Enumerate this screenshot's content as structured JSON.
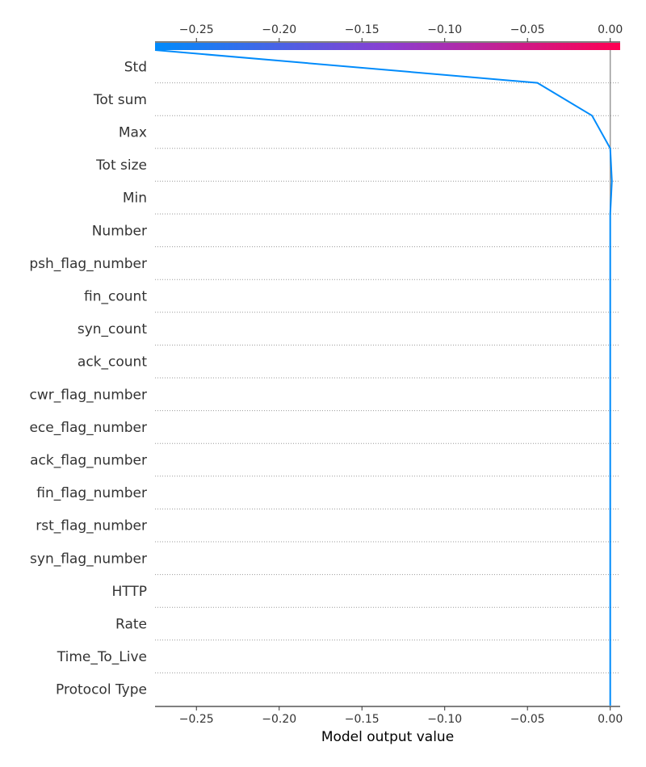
{
  "chart_data": {
    "type": "line",
    "xlabel": "Model output value",
    "xlim": [
      -0.275,
      0.006
    ],
    "x_ticks": [
      "−0.25",
      "−0.20",
      "−0.15",
      "−0.10",
      "−0.05",
      "0.00"
    ],
    "x_tick_values": [
      -0.25,
      -0.2,
      -0.15,
      -0.1,
      -0.05,
      0.0
    ],
    "reference_line_x": 0.0,
    "colorbar": {
      "from": "#008bfb",
      "to": "#ff0052"
    },
    "features": [
      "Std",
      "Tot sum",
      "Max",
      "Tot size",
      "Min",
      "Number",
      "psh_flag_number",
      "fin_count",
      "syn_count",
      "ack_count",
      "cwr_flag_number",
      "ece_flag_number",
      "ack_flag_number",
      "fin_flag_number",
      "rst_flag_number",
      "syn_flag_number",
      "HTTP",
      "Rate",
      "Time_To_Live",
      "Protocol Type"
    ],
    "series": [
      {
        "color": "#008bfb",
        "values": [
          -0.044,
          -0.011,
          0.0,
          0.001,
          0.0,
          0.0,
          0.0,
          0.0,
          0.0,
          0.0,
          0.0,
          0.0,
          0.0,
          0.0,
          0.0,
          0.0,
          0.0,
          0.0,
          0.0,
          0.0
        ],
        "start_value": -0.275
      }
    ]
  }
}
